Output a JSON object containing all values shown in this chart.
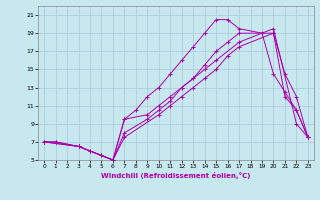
{
  "bg_color": "#c8e8f0",
  "grid_color": "#aac8d8",
  "line_color": "#aa00aa",
  "xlim": [
    -0.5,
    23.5
  ],
  "ylim": [
    5,
    22
  ],
  "xticks": [
    0,
    1,
    2,
    3,
    4,
    5,
    6,
    7,
    8,
    9,
    10,
    11,
    12,
    13,
    14,
    15,
    16,
    17,
    18,
    19,
    20,
    21,
    22,
    23
  ],
  "yticks": [
    5,
    7,
    9,
    11,
    13,
    15,
    17,
    19,
    21
  ],
  "xlabel": "Windchill (Refroidissement éolien,°C)",
  "series": [
    {
      "x": [
        0,
        1,
        3,
        4,
        5,
        6,
        7,
        10,
        11,
        12,
        13,
        14,
        15,
        16,
        17,
        20,
        21,
        22,
        23
      ],
      "y": [
        7,
        7,
        6.5,
        6,
        5.5,
        5,
        7.5,
        10,
        11,
        12,
        13,
        14,
        15,
        16.5,
        17.5,
        19,
        12,
        10.5,
        7.5
      ]
    },
    {
      "x": [
        0,
        1,
        3,
        4,
        5,
        6,
        7,
        8,
        9,
        10,
        11,
        12,
        13,
        14,
        15,
        16,
        17,
        19,
        20,
        21,
        22,
        23
      ],
      "y": [
        7,
        7,
        6.5,
        6,
        5.5,
        5,
        9.5,
        10.5,
        12,
        13,
        14.5,
        16,
        17.5,
        19,
        20.5,
        20.5,
        19.5,
        19,
        14.5,
        12.5,
        10.5,
        7.5
      ]
    },
    {
      "x": [
        0,
        3,
        6,
        7,
        9,
        10,
        11,
        12,
        13,
        14,
        15,
        16,
        17,
        20,
        21,
        22,
        23
      ],
      "y": [
        7,
        6.5,
        5,
        8,
        9.5,
        10.5,
        11.5,
        13,
        14,
        15.5,
        17,
        18,
        19,
        19,
        14.5,
        12,
        7.5
      ]
    },
    {
      "x": [
        0,
        3,
        6,
        7,
        9,
        10,
        11,
        12,
        13,
        14,
        15,
        17,
        20,
        22,
        23
      ],
      "y": [
        7,
        6.5,
        5,
        9.5,
        10,
        11,
        12,
        13,
        14,
        15,
        16,
        18,
        19.5,
        9,
        7.5
      ]
    }
  ]
}
